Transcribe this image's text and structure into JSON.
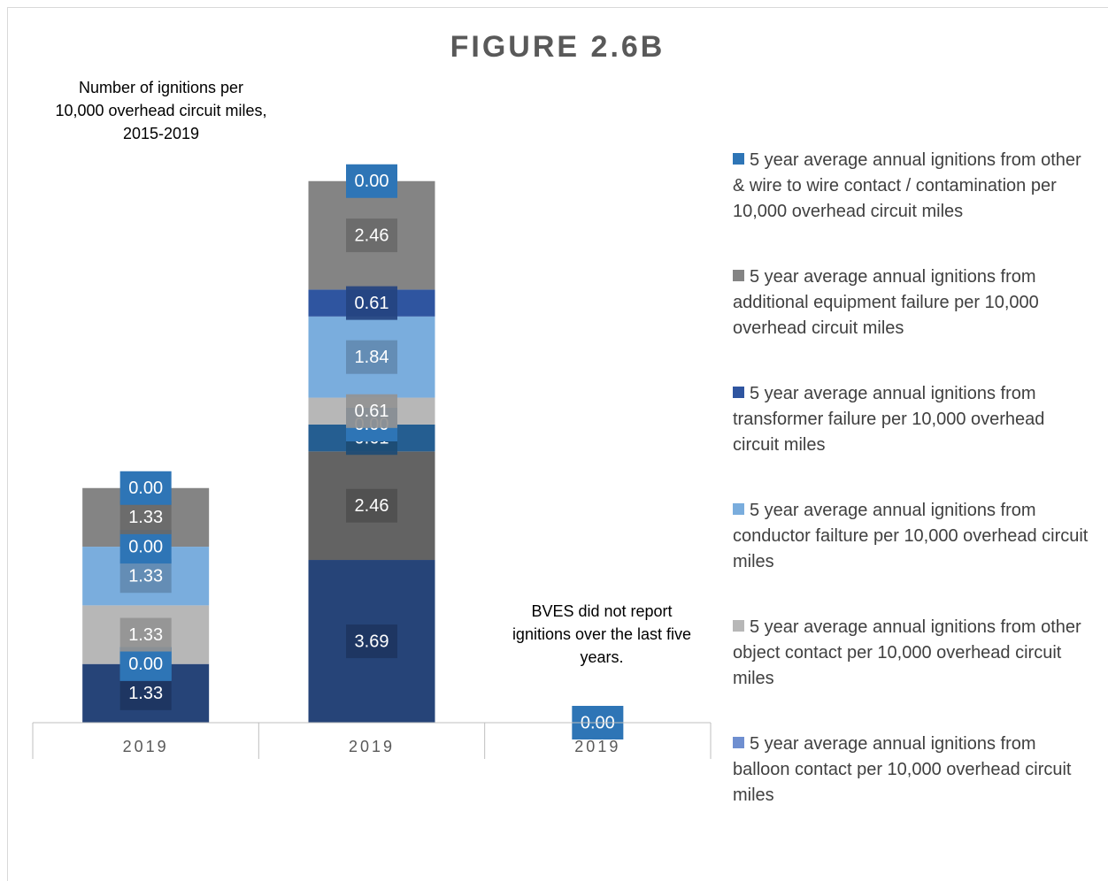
{
  "chart_data": {
    "type": "bar",
    "stacked": true,
    "title": "FIGURE 2.6B",
    "annotations": [
      "Number of ignitions per 10,000 overhead circuit miles, 2015-2019",
      "BVES did not report ignitions over the last five years."
    ],
    "categories": [
      "2019",
      "2019",
      "2019"
    ],
    "ylim": [
      0,
      14
    ],
    "series": [
      {
        "color": "#264478",
        "values": [
          1.33,
          3.69,
          null
        ],
        "value_labels": [
          "1.33",
          "3.69",
          null
        ]
      },
      {
        "color": "#636363",
        "values": [
          0,
          2.46,
          null
        ],
        "value_labels": [
          "0.00",
          "2.46",
          null
        ]
      },
      {
        "color": "#255e91",
        "values": [
          0,
          0.61,
          null
        ],
        "value_labels": [
          "0.00",
          "0.61",
          null
        ]
      },
      {
        "name": "5 year average annual ignitions from balloon contact per 10,000 overhead circuit miles",
        "color": "#6f8fd0",
        "values": [
          0,
          0,
          null
        ],
        "value_labels": [
          "0.00",
          "0.00",
          null
        ]
      },
      {
        "name": "5 year average annual ignitions from other object contact per 10,000 overhead circuit miles",
        "color": "#b7b7b7",
        "values": [
          1.33,
          0.61,
          null
        ],
        "value_labels": [
          "1.33",
          "0.61",
          null
        ]
      },
      {
        "name": "5 year average annual ignitions from conductor failture per 10,000 overhead circuit miles",
        "color": "#7aaddd",
        "values": [
          1.33,
          1.84,
          null
        ],
        "value_labels": [
          "1.33",
          "1.84",
          null
        ]
      },
      {
        "name": "5 year average annual ignitions from transformer failure per 10,000 overhead circuit miles",
        "color": "#2f55a0",
        "values": [
          0,
          0.61,
          null
        ],
        "value_labels": [
          "0.00",
          "0.61",
          null
        ]
      },
      {
        "name": "5 year average annual ignitions from additional equipment failure per 10,000 overhead circuit miles",
        "color": "#848484",
        "values": [
          1.33,
          2.46,
          null
        ],
        "value_labels": [
          "1.33",
          "2.46",
          null
        ]
      },
      {
        "name": "5 year average annual ignitions from other & wire to wire contact / contamination per 10,000 overhead circuit miles",
        "color": "#2e75b6",
        "values": [
          0,
          0,
          0
        ],
        "value_labels": [
          "0.00",
          "0.00",
          "0.00"
        ]
      }
    ]
  }
}
